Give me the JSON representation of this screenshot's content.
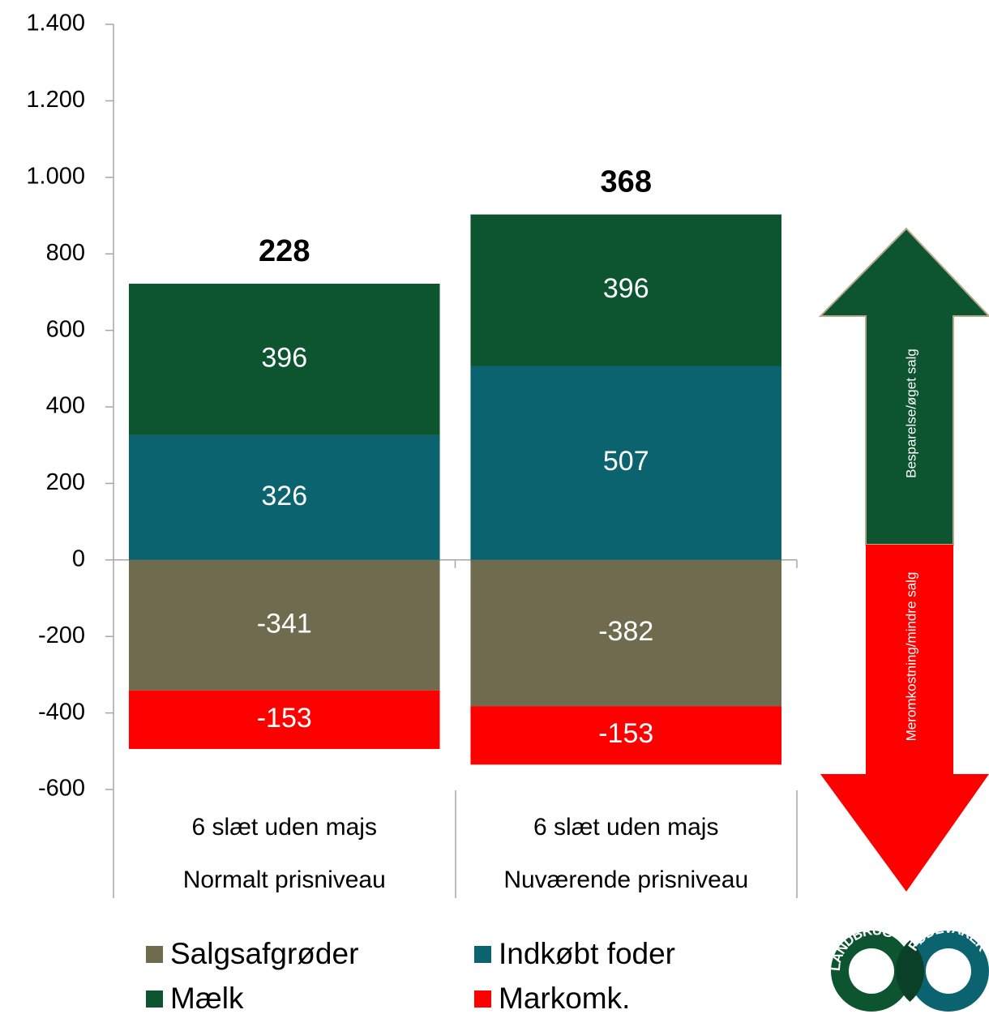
{
  "chart_data": {
    "type": "stacked_bar",
    "categories": [
      [
        "6 slæt uden majs",
        "Normalt prisniveau"
      ],
      [
        "6 slæt uden majs",
        "Nuværende prisniveau"
      ]
    ],
    "series": [
      {
        "name": "Salgsafgrøder",
        "color": "#6e6b4f",
        "values": [
          -341,
          -382
        ]
      },
      {
        "name": "Indkøbt foder",
        "color": "#0b6370",
        "values": [
          326,
          507
        ]
      },
      {
        "name": "Mælk",
        "color": "#0d5530",
        "values": [
          396,
          396
        ]
      },
      {
        "name": "Markomk.",
        "color": "#ff0000",
        "values": [
          -153,
          -153
        ]
      }
    ],
    "totals": [
      228,
      368
    ],
    "ylim": [
      -600,
      1400
    ],
    "yticks": [
      -600,
      -400,
      -200,
      0,
      200,
      400,
      600,
      800,
      {
        "value": 1000,
        "label": "1.000"
      },
      {
        "value": 1200,
        "label": "1.200"
      },
      {
        "value": 1400,
        "label": "1.400"
      }
    ],
    "annotations": [
      "Besparelse/øget salg",
      "Meromkostning/mindre salg"
    ]
  },
  "logo": {
    "left": "LANDBRUG",
    "right": "FØDEVARER"
  }
}
